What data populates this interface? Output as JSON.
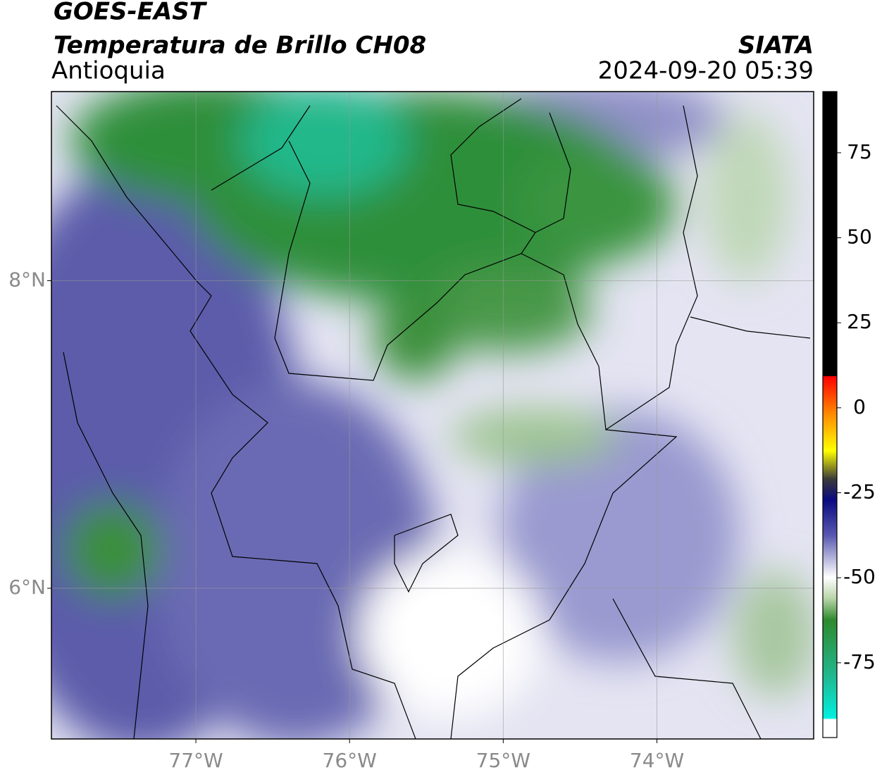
{
  "header": {
    "satellite": "GOES-EAST",
    "product": "Temperatura de Brillo CH08",
    "region": "Antioquia",
    "source": "SIATA",
    "datetime": "2024-09-20 05:39"
  },
  "map": {
    "xlim": [
      -77.94,
      -72.98
    ],
    "ylim": [
      5.02,
      9.23
    ],
    "xticks": [
      {
        "value": -77,
        "label": "77°W"
      },
      {
        "value": -76,
        "label": "76°W"
      },
      {
        "value": -75,
        "label": "75°W"
      },
      {
        "value": -74,
        "label": "74°W"
      }
    ],
    "yticks": [
      {
        "value": 8,
        "label": "8°N"
      },
      {
        "value": 6,
        "label": "6°N"
      }
    ],
    "grid": true
  },
  "colorbar": {
    "lim": [
      -97,
      93
    ],
    "ticks": [
      75,
      50,
      25,
      0,
      -25,
      -50,
      -75
    ]
  }
}
